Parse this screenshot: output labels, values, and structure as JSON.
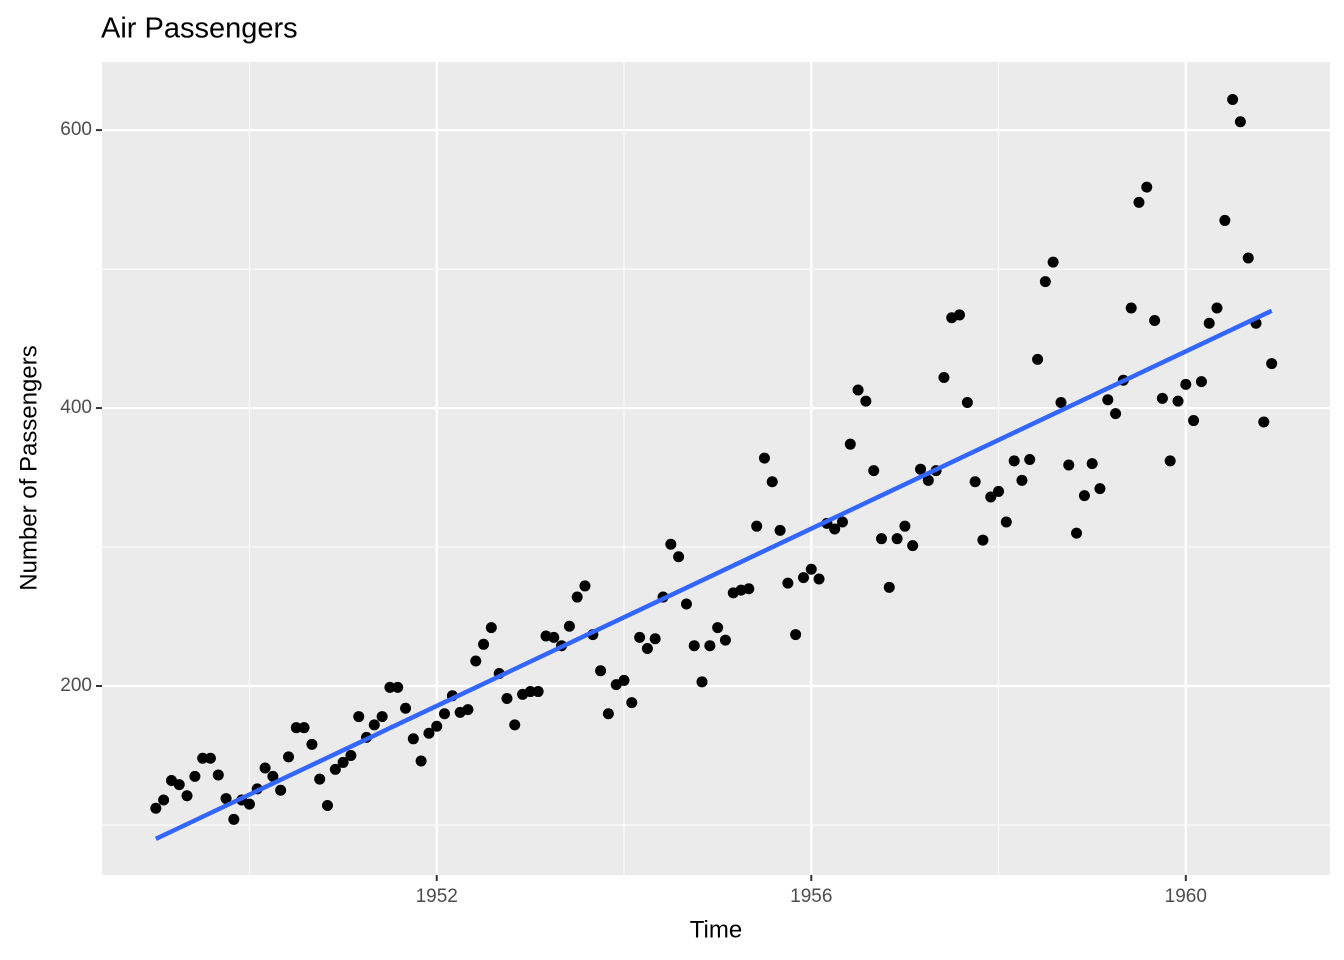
{
  "chart_data": {
    "type": "scatter",
    "title": "Air Passengers",
    "x_label": "Time",
    "y_label": "Number of Passengers",
    "xlim": [
      1948.425,
      1961.54
    ],
    "ylim": [
      64,
      649
    ],
    "xticks": [
      1952,
      1956,
      1960
    ],
    "xticks_minor": [
      1950,
      1954,
      1958
    ],
    "yticks": [
      200,
      400,
      600
    ],
    "yticks_minor": [
      100,
      300,
      500
    ],
    "grid": true,
    "color": "#000000",
    "x": [
      1949,
      1949.083,
      1949.167,
      1949.25,
      1949.333,
      1949.417,
      1949.5,
      1949.583,
      1949.667,
      1949.75,
      1949.833,
      1949.917,
      1950,
      1950.083,
      1950.167,
      1950.25,
      1950.333,
      1950.417,
      1950.5,
      1950.583,
      1950.667,
      1950.75,
      1950.833,
      1950.917,
      1951,
      1951.083,
      1951.167,
      1951.25,
      1951.333,
      1951.417,
      1951.5,
      1951.583,
      1951.667,
      1951.75,
      1951.833,
      1951.917,
      1952,
      1952.083,
      1952.167,
      1952.25,
      1952.333,
      1952.417,
      1952.5,
      1952.583,
      1952.667,
      1952.75,
      1952.833,
      1952.917,
      1953,
      1953.083,
      1953.167,
      1953.25,
      1953.333,
      1953.417,
      1953.5,
      1953.583,
      1953.667,
      1953.75,
      1953.833,
      1953.917,
      1954,
      1954.083,
      1954.167,
      1954.25,
      1954.333,
      1954.417,
      1954.5,
      1954.583,
      1954.667,
      1954.75,
      1954.833,
      1954.917,
      1955,
      1955.083,
      1955.167,
      1955.25,
      1955.333,
      1955.417,
      1955.5,
      1955.583,
      1955.667,
      1955.75,
      1955.833,
      1955.917,
      1956,
      1956.083,
      1956.167,
      1956.25,
      1956.333,
      1956.417,
      1956.5,
      1956.583,
      1956.667,
      1956.75,
      1956.833,
      1956.917,
      1957,
      1957.083,
      1957.167,
      1957.25,
      1957.333,
      1957.417,
      1957.5,
      1957.583,
      1957.667,
      1957.75,
      1957.833,
      1957.917,
      1958,
      1958.083,
      1958.167,
      1958.25,
      1958.333,
      1958.417,
      1958.5,
      1958.583,
      1958.667,
      1958.75,
      1958.833,
      1958.917,
      1959,
      1959.083,
      1959.167,
      1959.25,
      1959.333,
      1959.417,
      1959.5,
      1959.583,
      1959.667,
      1959.75,
      1959.833,
      1959.917,
      1960,
      1960.083,
      1960.167,
      1960.25,
      1960.333,
      1960.417,
      1960.5,
      1960.583,
      1960.667,
      1960.75,
      1960.833,
      1960.917
    ],
    "values": [
      112,
      118,
      132,
      129,
      121,
      135,
      148,
      148,
      136,
      119,
      104,
      118,
      115,
      126,
      141,
      135,
      125,
      149,
      170,
      170,
      158,
      133,
      114,
      140,
      145,
      150,
      178,
      163,
      172,
      178,
      199,
      199,
      184,
      162,
      146,
      166,
      171,
      180,
      193,
      181,
      183,
      218,
      230,
      242,
      209,
      191,
      172,
      194,
      196,
      196,
      236,
      235,
      229,
      243,
      264,
      272,
      237,
      211,
      180,
      201,
      204,
      188,
      235,
      227,
      234,
      264,
      302,
      293,
      259,
      229,
      203,
      229,
      242,
      233,
      267,
      269,
      270,
      315,
      364,
      347,
      312,
      274,
      237,
      278,
      284,
      277,
      317,
      313,
      318,
      374,
      413,
      405,
      355,
      306,
      271,
      306,
      315,
      301,
      356,
      348,
      355,
      422,
      465,
      467,
      404,
      347,
      305,
      336,
      340,
      318,
      362,
      348,
      363,
      435,
      491,
      505,
      404,
      359,
      310,
      337,
      360,
      342,
      406,
      396,
      420,
      472,
      548,
      559,
      463,
      407,
      362,
      405,
      417,
      391,
      419,
      461,
      472,
      535,
      622,
      606,
      508,
      461,
      390,
      432
    ],
    "trend_line": {
      "x": [
        1949,
        1960.917
      ],
      "values": [
        90,
        470
      ],
      "color": "#3366FF"
    }
  }
}
